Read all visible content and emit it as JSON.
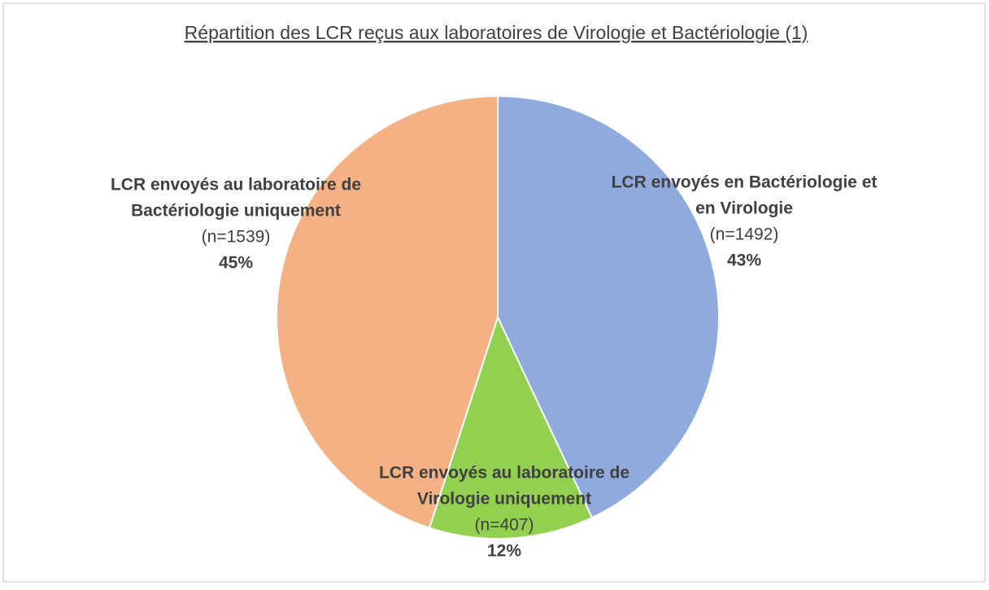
{
  "chart_data": {
    "type": "pie",
    "title": "Répartition des LCR reçus aux laboratoires de Virologie et Bactériologie (1)",
    "categories": [
      [
        "LCR envoyés en Bactériologie et",
        "en Virologie"
      ],
      [
        "LCR envoyés au laboratoire de",
        "Virologie uniquement"
      ],
      [
        "LCR envoyés au laboratoire de",
        "Bactériologie uniquement"
      ]
    ],
    "values": [
      43,
      12,
      45
    ],
    "value_labels": [
      "43%",
      "12%",
      "45%"
    ],
    "counts": [
      1492,
      407,
      1539
    ],
    "count_labels": [
      "(n=1492)",
      "(n=407)",
      "(n=1539)"
    ],
    "colors": [
      "#8faadc",
      "#92d050",
      "#f4b183"
    ]
  }
}
